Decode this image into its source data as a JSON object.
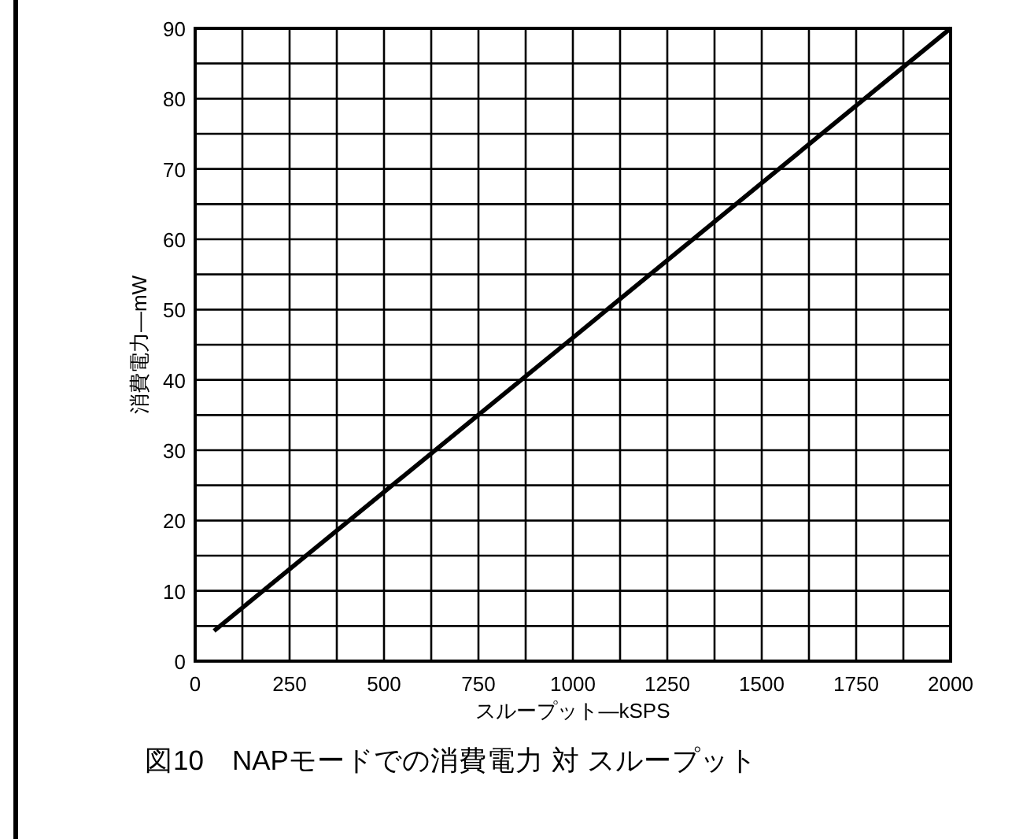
{
  "chart_data": {
    "type": "line",
    "title": "図10　NAPモードでの消費電力 対 スループット",
    "xlabel": "スループット—kSPS",
    "ylabel": "消費電力—mW",
    "x": [
      50,
      1000,
      2000
    ],
    "series": [
      {
        "color": "#000000",
        "values": [
          4.3,
          46,
          90
        ]
      }
    ],
    "xlim": [
      0,
      2000
    ],
    "ylim": [
      0,
      90
    ],
    "xticks": [
      0,
      {
        "value": 125,
        "label": null
      },
      250,
      {
        "value": 375,
        "label": null
      },
      500,
      {
        "value": 625,
        "label": null
      },
      750,
      {
        "value": 875,
        "label": null
      },
      1000,
      {
        "value": 1125,
        "label": null
      },
      1250,
      {
        "value": 1375,
        "label": null
      },
      1500,
      {
        "value": 1625,
        "label": null
      },
      1750,
      {
        "value": 1875,
        "label": null
      },
      2000
    ],
    "yticks": [
      0,
      {
        "value": 5,
        "label": null
      },
      10,
      {
        "value": 15,
        "label": null
      },
      20,
      {
        "value": 25,
        "label": null
      },
      30,
      {
        "value": 35,
        "label": null
      },
      40,
      {
        "value": 45,
        "label": null
      },
      50,
      {
        "value": 55,
        "label": null
      },
      60,
      {
        "value": 65,
        "label": null
      },
      70,
      {
        "value": 75,
        "label": null
      },
      80,
      {
        "value": 85,
        "label": null
      },
      90
    ],
    "grid": true,
    "marker": "none",
    "line_style": "solid"
  }
}
